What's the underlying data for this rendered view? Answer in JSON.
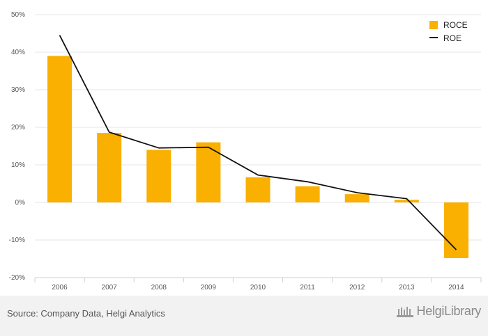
{
  "chart_data": {
    "type": "bar",
    "categories": [
      "2006",
      "2007",
      "2008",
      "2009",
      "2010",
      "2011",
      "2012",
      "2013",
      "2014"
    ],
    "series": [
      {
        "name": "ROCE",
        "type": "bar",
        "color": "#f9b000",
        "values": [
          39.0,
          18.5,
          14.0,
          16.0,
          6.7,
          4.3,
          2.2,
          0.7,
          -14.8
        ]
      },
      {
        "name": "ROE",
        "type": "line",
        "color": "#111111",
        "values": [
          44.5,
          18.7,
          14.5,
          14.7,
          7.3,
          5.5,
          2.6,
          1.0,
          -12.6
        ]
      }
    ],
    "yticks": [
      "50%",
      "40%",
      "30%",
      "20%",
      "10%",
      "0%",
      "-10%",
      "-20%"
    ],
    "ytick_values": [
      50,
      40,
      30,
      20,
      10,
      0,
      -10,
      -20
    ],
    "ylim": [
      -20,
      50
    ],
    "grid": true,
    "legend_position": "top-right"
  },
  "footer": {
    "source": "Source: Company Data, Helgi Analytics",
    "brand": "HelgiLibrary"
  }
}
